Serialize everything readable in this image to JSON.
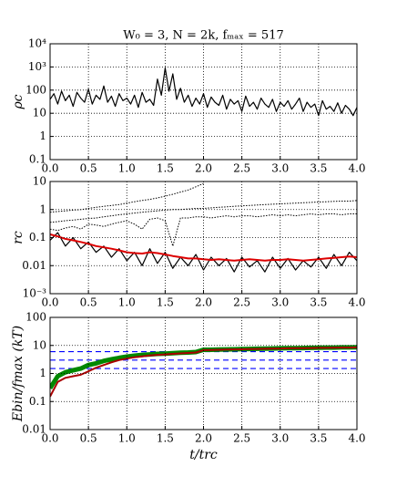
{
  "chart_data": [
    {
      "type": "line",
      "title": "W₀ = 3, N = 2k, fₘₐₓ = 517",
      "ylabel": "ρc",
      "log_y": true,
      "grid": true,
      "xlim": [
        0,
        4
      ],
      "ylim": [
        0.1,
        10000
      ],
      "xticks": [
        {
          "value": 0,
          "label": "0.0"
        },
        0.5,
        {
          "value": 1,
          "label": "1.0"
        },
        1.5,
        {
          "value": 2,
          "label": "2.0"
        },
        2.5,
        {
          "value": 3,
          "label": "3.0"
        },
        3.5,
        {
          "value": 4,
          "label": "4.0"
        }
      ],
      "yticks": [
        0.1,
        1,
        10,
        100,
        {
          "value": 1000,
          "label": "10³"
        },
        {
          "value": 10000,
          "label": "10⁴"
        }
      ],
      "x": [
        0,
        0.05,
        0.1,
        0.15,
        0.2,
        0.25,
        0.3,
        0.35,
        0.4,
        0.45,
        0.5,
        0.55,
        0.6,
        0.65,
        0.7,
        0.75,
        0.8,
        0.85,
        0.9,
        0.95,
        1,
        1.05,
        1.1,
        1.15,
        1.2,
        1.25,
        1.3,
        1.35,
        1.4,
        1.45,
        1.5,
        1.55,
        1.6,
        1.65,
        1.7,
        1.75,
        1.8,
        1.85,
        1.9,
        1.95,
        2,
        2.05,
        2.1,
        2.15,
        2.2,
        2.25,
        2.3,
        2.35,
        2.4,
        2.45,
        2.5,
        2.55,
        2.6,
        2.65,
        2.7,
        2.75,
        2.8,
        2.85,
        2.9,
        2.95,
        3,
        3.05,
        3.1,
        3.15,
        3.2,
        3.25,
        3.3,
        3.35,
        3.4,
        3.45,
        3.5,
        3.55,
        3.6,
        3.65,
        3.7,
        3.75,
        3.8,
        3.85,
        3.9,
        3.95,
        4
      ],
      "series": [
        {
          "color": "#000000",
          "style": "solid",
          "width": 1.2,
          "values": [
            40,
            70,
            25,
            90,
            35,
            60,
            20,
            80,
            45,
            30,
            110,
            25,
            60,
            40,
            150,
            30,
            55,
            20,
            70,
            35,
            45,
            25,
            60,
            18,
            80,
            30,
            40,
            22,
            300,
            60,
            900,
            90,
            500,
            40,
            120,
            30,
            60,
            20,
            45,
            25,
            70,
            18,
            50,
            30,
            22,
            60,
            15,
            40,
            25,
            35,
            12,
            55,
            20,
            30,
            15,
            45,
            25,
            18,
            40,
            12,
            30,
            20,
            35,
            15,
            25,
            45,
            12,
            30,
            18,
            25,
            8,
            35,
            15,
            20,
            12,
            28,
            10,
            22,
            15,
            8,
            18
          ]
        }
      ]
    },
    {
      "type": "line",
      "ylabel": "rc",
      "log_y": true,
      "grid": true,
      "xlim": [
        0,
        4
      ],
      "ylim": [
        0.001,
        10
      ],
      "xticks": [
        {
          "value": 0,
          "label": "0.0"
        },
        0.5,
        {
          "value": 1,
          "label": "1.0"
        },
        1.5,
        {
          "value": 2,
          "label": "2.0"
        },
        2.5,
        {
          "value": 3,
          "label": "3.0"
        },
        3.5,
        {
          "value": 4,
          "label": "4.0"
        }
      ],
      "yticks": [
        {
          "value": 0.001,
          "label": "10⁻³"
        },
        0.01,
        0.1,
        1,
        10
      ],
      "x": [
        0,
        0.1,
        0.2,
        0.3,
        0.4,
        0.5,
        0.6,
        0.7,
        0.8,
        0.9,
        1,
        1.1,
        1.2,
        1.3,
        1.4,
        1.5,
        1.6,
        1.7,
        1.8,
        1.9,
        2,
        2.1,
        2.2,
        2.3,
        2.4,
        2.5,
        2.6,
        2.7,
        2.8,
        2.9,
        3,
        3.1,
        3.2,
        3.3,
        3.4,
        3.5,
        3.6,
        3.7,
        3.8,
        3.9,
        4
      ],
      "series": [
        {
          "color": "#000000",
          "style": "dotted",
          "width": 1,
          "values": [
            0.8,
            0.85,
            0.9,
            0.95,
            1.0,
            1.1,
            1.2,
            1.3,
            1.4,
            1.5,
            1.7,
            1.9,
            2.1,
            2.3,
            2.6,
            3,
            3.5,
            4.2,
            5,
            6.5,
            8.5,
            null,
            null,
            null,
            null,
            null,
            null,
            null,
            null,
            null,
            null,
            null,
            null,
            null,
            null,
            null,
            null,
            null,
            null,
            null,
            null
          ]
        },
        {
          "color": "#000000",
          "style": "dotted",
          "width": 1,
          "values": [
            0.35,
            0.37,
            0.4,
            0.42,
            0.45,
            0.48,
            0.5,
            0.55,
            0.6,
            0.65,
            0.7,
            0.75,
            0.8,
            0.85,
            0.9,
            0.95,
            1,
            1,
            1.05,
            1.1,
            1.1,
            1.15,
            1.2,
            1.25,
            1.3,
            1.35,
            1.4,
            1.45,
            1.5,
            1.55,
            1.6,
            1.65,
            1.7,
            1.75,
            1.8,
            1.85,
            1.9,
            1.95,
            2,
            2,
            2.1
          ]
        },
        {
          "color": "#000000",
          "style": "dotted",
          "width": 1,
          "values": [
            0.2,
            0.18,
            0.22,
            0.25,
            0.2,
            0.3,
            0.28,
            0.25,
            0.3,
            0.35,
            0.4,
            0.3,
            0.2,
            0.45,
            0.5,
            0.4,
            0.05,
            0.5,
            0.5,
            0.55,
            0.55,
            0.5,
            0.55,
            0.6,
            0.55,
            0.6,
            0.6,
            0.55,
            0.6,
            0.65,
            0.6,
            0.65,
            0.6,
            0.65,
            0.7,
            0.65,
            0.7,
            0.7,
            0.65,
            0.7,
            0.7
          ]
        },
        {
          "color": "#000000",
          "style": "solid",
          "width": 1.2,
          "values": [
            0.08,
            0.15,
            0.05,
            0.1,
            0.04,
            0.07,
            0.03,
            0.05,
            0.02,
            0.04,
            0.015,
            0.03,
            0.01,
            0.04,
            0.012,
            0.03,
            0.008,
            0.02,
            0.01,
            0.025,
            0.007,
            0.02,
            0.01,
            0.018,
            0.006,
            0.02,
            0.009,
            0.015,
            0.006,
            0.02,
            0.008,
            0.018,
            0.007,
            0.015,
            0.009,
            0.02,
            0.008,
            0.025,
            0.01,
            0.03,
            0.015
          ]
        },
        {
          "color": "#dd0000",
          "style": "solid",
          "width": 2,
          "values": [
            0.13,
            0.11,
            0.09,
            0.08,
            0.07,
            0.06,
            0.05,
            0.045,
            0.04,
            0.035,
            0.03,
            0.028,
            0.027,
            0.03,
            0.028,
            0.025,
            0.022,
            0.02,
            0.018,
            0.018,
            0.017,
            0.016,
            0.017,
            0.016,
            0.015,
            0.016,
            0.017,
            0.016,
            0.015,
            0.016,
            0.016,
            0.017,
            0.016,
            0.015,
            0.016,
            0.017,
            0.018,
            0.019,
            0.02,
            0.021,
            0.02
          ]
        }
      ]
    },
    {
      "type": "line",
      "ylabel": "Ebin/fmax (kT)",
      "xlabel": "t/trc",
      "log_y": true,
      "grid": true,
      "xlim": [
        0,
        4
      ],
      "ylim": [
        0.01,
        100
      ],
      "xticks": [
        {
          "value": 0,
          "label": "0.0"
        },
        0.5,
        {
          "value": 1,
          "label": "1.0"
        },
        1.5,
        {
          "value": 2,
          "label": "2.0"
        },
        2.5,
        {
          "value": 3,
          "label": "3.0"
        },
        3.5,
        {
          "value": 4,
          "label": "4.0"
        }
      ],
      "yticks": [
        0.01,
        0.1,
        1,
        10,
        100
      ],
      "hlines": [
        6,
        3,
        1.5
      ],
      "hline_color": "#0000ff",
      "x": [
        0,
        0.1,
        0.2,
        0.3,
        0.4,
        0.5,
        0.6,
        0.7,
        0.8,
        0.9,
        1,
        1.1,
        1.2,
        1.3,
        1.4,
        1.5,
        1.6,
        1.7,
        1.8,
        1.9,
        2,
        2.1,
        2.2,
        2.3,
        2.4,
        2.5,
        2.6,
        2.7,
        2.8,
        2.9,
        3,
        3.1,
        3.2,
        3.3,
        3.4,
        3.5,
        3.6,
        3.7,
        3.8,
        3.9,
        4
      ],
      "series": [
        {
          "color": "#008800",
          "style": "solid",
          "width": 5,
          "values": [
            0.3,
            0.8,
            1.1,
            1.3,
            1.5,
            2,
            2.3,
            2.8,
            3.2,
            3.6,
            4,
            4.3,
            4.6,
            4.8,
            5,
            5.1,
            5.3,
            5.5,
            5.6,
            5.8,
            7,
            7,
            7.1,
            7.2,
            7.3,
            7.4,
            7.5,
            7.6,
            7.7,
            7.8,
            7.9,
            8,
            8,
            8.1,
            8.2,
            8.3,
            8.4,
            8.4,
            8.5,
            8.5,
            8.6
          ]
        },
        {
          "color": "#aa0000",
          "style": "solid",
          "width": 2,
          "values": [
            0.15,
            0.5,
            0.7,
            0.8,
            0.9,
            1.2,
            1.6,
            2,
            2.5,
            3,
            3.4,
            3.8,
            4.1,
            4.4,
            4.6,
            4.8,
            5,
            5.2,
            5.4,
            5.6,
            6.8,
            6.9,
            7,
            7.1,
            7.2,
            7.3,
            7.4,
            7.5,
            7.6,
            7.7,
            7.8,
            7.9,
            8,
            8,
            8.1,
            8.2,
            8.2,
            8.3,
            8.4,
            8.4,
            8.5
          ]
        }
      ]
    }
  ]
}
